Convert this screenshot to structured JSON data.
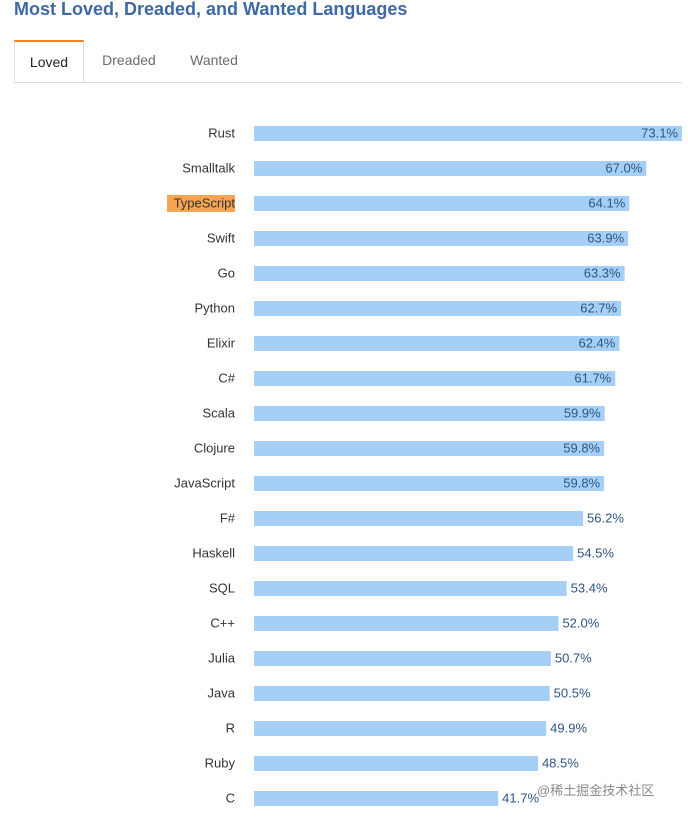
{
  "header": {
    "title": "Most Loved, Dreaded, and Wanted Languages"
  },
  "tabs": [
    {
      "label": "Loved",
      "active": true
    },
    {
      "label": "Dreaded",
      "active": false
    },
    {
      "label": "Wanted",
      "active": false
    }
  ],
  "chart_data": {
    "type": "bar",
    "orientation": "horizontal",
    "categories": [
      "Rust",
      "Smalltalk",
      "TypeScript",
      "Swift",
      "Go",
      "Python",
      "Elixir",
      "C#",
      "Scala",
      "Clojure",
      "JavaScript",
      "F#",
      "Haskell",
      "SQL",
      "C++",
      "Julia",
      "Java",
      "R",
      "Ruby",
      "C"
    ],
    "values": [
      73.1,
      67.0,
      64.1,
      63.9,
      63.3,
      62.7,
      62.4,
      61.7,
      59.9,
      59.8,
      59.8,
      56.2,
      54.5,
      53.4,
      52.0,
      50.7,
      50.5,
      49.9,
      48.5,
      41.7
    ],
    "value_labels": [
      "73.1%",
      "67.0%",
      "64.1%",
      "63.9%",
      "63.3%",
      "62.7%",
      "62.4%",
      "61.7%",
      "59.9%",
      "59.8%",
      "59.8%",
      "56.2%",
      "54.5%",
      "53.4%",
      "52.0%",
      "50.7%",
      "50.5%",
      "49.9%",
      "48.5%",
      "41.7%"
    ],
    "highlighted_category": "TypeScript",
    "bar_color": "#a5cff5",
    "value_label_color": "#2e5585",
    "category_label_color": "#333333",
    "highlight_color": "#f5a552",
    "grid": false
  },
  "watermark": "@稀土掘金技术社区"
}
